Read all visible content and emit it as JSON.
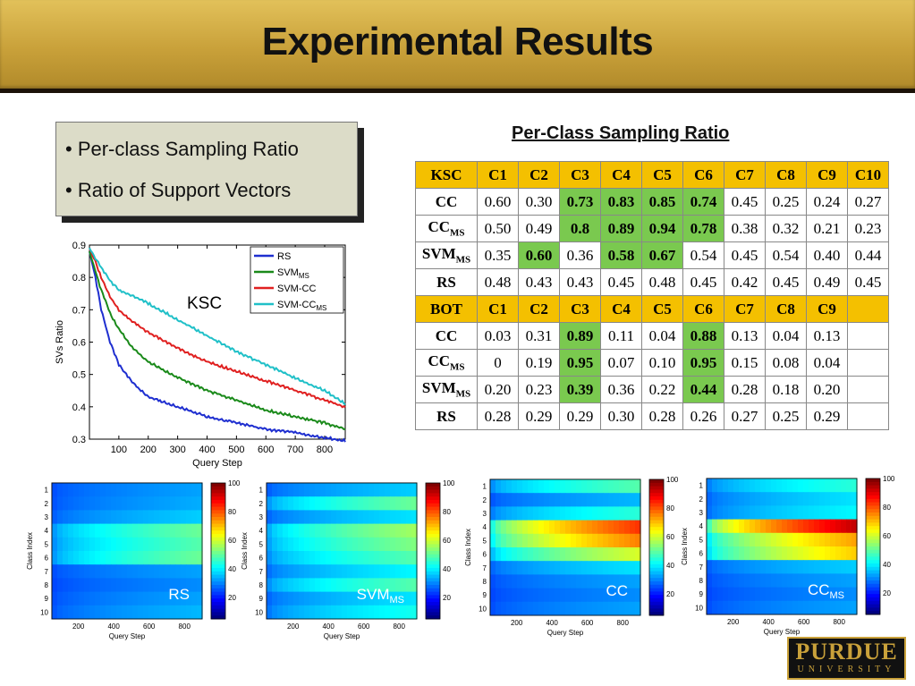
{
  "title": "Experimental Results",
  "bullets": [
    "• Per-class Sampling Ratio",
    "• Ratio of Support Vectors"
  ],
  "table": {
    "title": "Per-Class Sampling Ratio",
    "ksc": {
      "header": [
        "KSC",
        "C1",
        "C2",
        "C3",
        "C4",
        "C5",
        "C6",
        "C7",
        "C8",
        "C9",
        "C10"
      ],
      "rows": [
        {
          "label": "CC",
          "sub": "",
          "values": [
            "0.60",
            "0.30",
            "0.73",
            "0.83",
            "0.85",
            "0.74",
            "0.45",
            "0.25",
            "0.24",
            "0.27"
          ],
          "highlight": [
            2,
            3,
            4,
            5
          ]
        },
        {
          "label": "CC",
          "sub": "MS",
          "values": [
            "0.50",
            "0.49",
            "0.8",
            "0.89",
            "0.94",
            "0.78",
            "0.38",
            "0.32",
            "0.21",
            "0.23"
          ],
          "highlight": [
            2,
            3,
            4,
            5
          ]
        },
        {
          "label": "SVM",
          "sub": "MS",
          "values": [
            "0.35",
            "0.60",
            "0.36",
            "0.58",
            "0.67",
            "0.54",
            "0.45",
            "0.54",
            "0.40",
            "0.44"
          ],
          "highlight": [
            1,
            3,
            4
          ]
        },
        {
          "label": "RS",
          "sub": "",
          "values": [
            "0.48",
            "0.43",
            "0.43",
            "0.45",
            "0.48",
            "0.45",
            "0.42",
            "0.45",
            "0.49",
            "0.45"
          ],
          "highlight": []
        }
      ]
    },
    "bot": {
      "header": [
        "BOT",
        "C1",
        "C2",
        "C3",
        "C4",
        "C5",
        "C6",
        "C7",
        "C8",
        "C9",
        ""
      ],
      "rows": [
        {
          "label": "CC",
          "sub": "",
          "values": [
            "0.03",
            "0.31",
            "0.89",
            "0.11",
            "0.04",
            "0.88",
            "0.13",
            "0.04",
            "0.13",
            ""
          ],
          "highlight": [
            2,
            5
          ]
        },
        {
          "label": "CC",
          "sub": "MS",
          "values": [
            "0",
            "0.19",
            "0.95",
            "0.07",
            "0.10",
            "0.95",
            "0.15",
            "0.08",
            "0.04",
            ""
          ],
          "highlight": [
            2,
            5
          ]
        },
        {
          "label": "SVM",
          "sub": "MS",
          "values": [
            "0.20",
            "0.23",
            "0.39",
            "0.36",
            "0.22",
            "0.44",
            "0.28",
            "0.18",
            "0.20",
            ""
          ],
          "highlight": [
            2,
            5
          ]
        },
        {
          "label": "RS",
          "sub": "",
          "values": [
            "0.28",
            "0.29",
            "0.29",
            "0.30",
            "0.28",
            "0.26",
            "0.27",
            "0.25",
            "0.29",
            ""
          ],
          "highlight": []
        }
      ]
    }
  },
  "chart_data": [
    {
      "type": "line",
      "annotation": "KSC",
      "xlabel": "Query Step",
      "ylabel": "SVs Ratio",
      "xlim": [
        0,
        870
      ],
      "ylim": [
        0.3,
        0.9
      ],
      "xticks": [
        100,
        200,
        300,
        400,
        500,
        600,
        700,
        800
      ],
      "yticks": [
        0.3,
        0.4,
        0.5,
        0.6,
        0.7,
        0.8,
        0.9
      ],
      "legend": "top-right",
      "x": [
        0,
        20,
        40,
        70,
        100,
        150,
        200,
        300,
        400,
        500,
        600,
        700,
        800,
        870
      ],
      "series": [
        {
          "name": "RS",
          "sub": "",
          "color": "#1f2fd0",
          "values": [
            0.88,
            0.8,
            0.7,
            0.6,
            0.53,
            0.47,
            0.43,
            0.4,
            0.37,
            0.35,
            0.33,
            0.32,
            0.305,
            0.295
          ]
        },
        {
          "name": "SVM",
          "sub": "MS",
          "color": "#1a8a1a",
          "values": [
            0.88,
            0.82,
            0.76,
            0.69,
            0.64,
            0.58,
            0.54,
            0.49,
            0.45,
            0.42,
            0.39,
            0.37,
            0.35,
            0.33
          ]
        },
        {
          "name": "SVM-CC",
          "sub": "",
          "color": "#e02020",
          "values": [
            0.89,
            0.85,
            0.8,
            0.74,
            0.7,
            0.66,
            0.63,
            0.58,
            0.54,
            0.51,
            0.48,
            0.45,
            0.42,
            0.4
          ]
        },
        {
          "name": "SVM-CC",
          "sub": "MS",
          "color": "#20c0c8",
          "values": [
            0.89,
            0.86,
            0.83,
            0.79,
            0.76,
            0.74,
            0.72,
            0.67,
            0.62,
            0.57,
            0.53,
            0.49,
            0.45,
            0.41
          ]
        }
      ]
    },
    {
      "type": "heatmap",
      "label": "RS",
      "label_sub": "",
      "xlabel": "Query Step",
      "ylabel": "Class Index",
      "xticks": [
        200,
        400,
        600,
        800
      ],
      "yticks": [
        1,
        2,
        3,
        4,
        5,
        6,
        7,
        8,
        9,
        10
      ],
      "colorbar_ticks": [
        20,
        40,
        60,
        80,
        100
      ],
      "class_levels": [
        12,
        13,
        16,
        30,
        28,
        30,
        12,
        10,
        12,
        14
      ]
    },
    {
      "type": "heatmap",
      "label": "SVM",
      "label_sub": "MS",
      "xlabel": "Query Step",
      "ylabel": "Class Index",
      "xticks": [
        200,
        400,
        600,
        800
      ],
      "yticks": [
        1,
        2,
        3,
        4,
        5,
        6,
        7,
        8,
        9,
        10
      ],
      "colorbar_ticks": [
        20,
        40,
        60,
        80,
        100
      ],
      "class_levels": [
        16,
        30,
        18,
        35,
        32,
        28,
        20,
        28,
        18,
        22
      ]
    },
    {
      "type": "heatmap",
      "label": "CC",
      "label_sub": "",
      "xlabel": "Query Step",
      "ylabel": "Class Index",
      "xticks": [
        200,
        400,
        600,
        800
      ],
      "yticks": [
        1,
        2,
        3,
        4,
        5,
        6,
        7,
        8,
        9,
        10
      ],
      "colorbar_ticks": [
        20,
        40,
        60,
        80,
        100
      ],
      "class_levels": [
        28,
        14,
        24,
        62,
        55,
        40,
        18,
        12,
        10,
        12
      ]
    },
    {
      "type": "heatmap",
      "label": "CC",
      "label_sub": "MS",
      "xlabel": "Query Step",
      "ylabel": "Class Index",
      "xticks": [
        200,
        400,
        600,
        800
      ],
      "yticks": [
        1,
        2,
        3,
        4,
        5,
        6,
        7,
        8,
        9,
        10
      ],
      "colorbar_ticks": [
        20,
        40,
        60,
        80,
        100
      ],
      "class_levels": [
        24,
        18,
        20,
        72,
        52,
        48,
        16,
        12,
        10,
        12
      ]
    }
  ],
  "logo": {
    "name": "PURDUE",
    "sub": "UNIVERSITY"
  }
}
